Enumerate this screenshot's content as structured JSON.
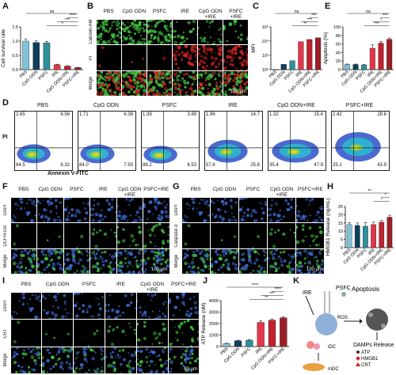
{
  "panels": {
    "A": "A",
    "B": "B",
    "C": "C",
    "D": "D",
    "E": "E",
    "F": "F",
    "G": "G",
    "H": "H",
    "I": "I",
    "J": "J",
    "K": "K"
  },
  "groups": [
    "PBS",
    "CpG ODN",
    "PSFC",
    "IRE",
    "CpG ODN+IRE",
    "PSFC+IRE"
  ],
  "micro_cols": {
    "pbs": "PBS",
    "cpg": "CpG ODN",
    "psfc": "PSFC",
    "ire": "IRE",
    "cpg_ire": "CpG ODN\n+IRE",
    "psfc_ire": "PSFC+IRE"
  },
  "panel_b": {
    "rows": [
      "Calcein-AM",
      "PI",
      "Merge"
    ],
    "scale": "100 μm",
    "cols": [
      "PBS",
      "CpG ODN",
      "PSFC",
      "IRE",
      "CpG ODN\n+IRE",
      "PSFC\n+IRE"
    ]
  },
  "panel_f": {
    "rows": [
      "DAPI",
      "DCFH-DA",
      "Merge"
    ],
    "scale": "100 μm"
  },
  "panel_g": {
    "rows": [
      "DAPI",
      "Caspase-3",
      "Merge"
    ],
    "scale": "100 μm"
  },
  "panel_i": {
    "rows": [
      "DAPI",
      "CRT",
      "Merge"
    ],
    "scale": "50 μm"
  },
  "panel_d": {
    "ylabel": "PI",
    "xlabel": "Annexin V-FITC",
    "plots": [
      {
        "title": "PBS",
        "ul": "2.65",
        "ur": "6.56",
        "ll": "84.5",
        "lr": "6.32"
      },
      {
        "title": "CpG ODN",
        "ul": "1.71",
        "ur": "6.38",
        "ll": "84.0",
        "lr": "7.93"
      },
      {
        "title": "PSFC",
        "ul": "1.39",
        "ur": "3.89",
        "ll": "88.2",
        "lr": "6.53"
      },
      {
        "title": "IRE",
        "ul": "1.96",
        "ur": "14.7",
        "ll": "57.6",
        "lr": "25.8"
      },
      {
        "title": "CpG ODN+IRE",
        "ul": "1.32",
        "ur": "15.4",
        "ll": "35.4",
        "lr": "47.9"
      },
      {
        "title": "PSFC+IRE",
        "ul": "2.42",
        "ur": "28.6",
        "ll": "25.1",
        "lr": "43.9"
      }
    ]
  },
  "panel_k": {
    "ire": "IRE",
    "psfc": "PSFC",
    "ros": "ROS",
    "apoptosis": "Apoptosis",
    "damps": "DAMPs Release",
    "idc": "iDC",
    "mdc": "mDC",
    "atp": "ATP",
    "hmgb1": "HMGB1",
    "crt": "CRT"
  },
  "chart_data": [
    {
      "id": "A",
      "type": "bar",
      "ylabel": "Cell survival rate",
      "categories": [
        "PBS",
        "CpG ODN",
        "PSFC",
        "IRE",
        "CpG ODN+IRE",
        "PSFC+IRE"
      ],
      "values": [
        1.0,
        0.95,
        0.94,
        0.17,
        0.12,
        0.07
      ],
      "errors": [
        0.08,
        0.06,
        0.05,
        0.02,
        0.02,
        0.01
      ],
      "ylim": [
        0,
        1.5
      ],
      "yticks": [
        "0.0",
        "0.5",
        "1.0",
        "1.5"
      ],
      "sig": [
        "ns",
        "****",
        "***",
        "*"
      ]
    },
    {
      "id": "C",
      "type": "bar",
      "ylabel": "MFI",
      "yscale": "log",
      "categories": [
        "PBS",
        "CpG ODN",
        "PSFC",
        "IRE",
        "CpG ODN+IRE",
        "PSFC+IRE"
      ],
      "values": [
        1.0,
        5.5,
        18,
        8500,
        17000,
        30000
      ],
      "ylim": [
        1,
        1000000
      ],
      "yticks": [
        "10⁰",
        "10²",
        "10⁴",
        "10⁶"
      ],
      "sig": [
        "ns",
        "***",
        "***",
        "**"
      ]
    },
    {
      "id": "E",
      "type": "bar",
      "ylabel": "Apoptosis (%)",
      "categories": [
        "PBS",
        "CpG ODN",
        "PSFC",
        "IRE",
        "CpG ODN+IRE",
        "PSFC+IRE"
      ],
      "values": [
        12,
        12,
        11,
        50,
        62,
        71
      ],
      "errors": [
        1,
        1,
        1,
        8,
        4,
        3
      ],
      "ylim": [
        0,
        100
      ],
      "yticks": [
        "0",
        "20",
        "40",
        "60",
        "80",
        "100"
      ],
      "sig": [
        "ns",
        "***",
        "*",
        "***"
      ]
    },
    {
      "id": "H",
      "type": "bar",
      "ylabel": "HMGB1 Release (ng/mL)",
      "categories": [
        "PBS",
        "CpG ODN",
        "PSFC",
        "IRE",
        "CpG ODN+IRE",
        "PSFC+IRE"
      ],
      "values": [
        14,
        13.5,
        13,
        14,
        15.5,
        18.5
      ],
      "errors": [
        1.2,
        1.5,
        2.2,
        1.5,
        1.0,
        1.2
      ],
      "ylim": [
        0,
        25
      ],
      "yticks": [
        "0",
        "5",
        "10",
        "15",
        "20",
        "25"
      ],
      "sig": [
        "**",
        "*",
        "*"
      ]
    },
    {
      "id": "J",
      "type": "bar",
      "ylabel": "ATP Release (nM)",
      "categories": [
        "PBS",
        "CpG ODN",
        "PSFC",
        "IRE",
        "CpG ODN+IRE",
        "PSFC+IRE"
      ],
      "values": [
        250,
        500,
        550,
        2100,
        2300,
        2500
      ],
      "errors": [
        40,
        50,
        60,
        150,
        100,
        100
      ],
      "ylim": [
        0,
        4000
      ],
      "yticks": [
        "0",
        "1000",
        "2000",
        "3000",
        "4000"
      ],
      "sig": [
        "****",
        "****",
        "***",
        "**"
      ]
    }
  ],
  "colors": {
    "bars": [
      "#7ec4d8",
      "#0e3f5c",
      "#2f8f9a",
      "#e4364a",
      "#c3212f",
      "#9c1f27"
    ],
    "green": "#3fbf3f",
    "red": "#cc2222",
    "blue": "#3a64c8"
  }
}
